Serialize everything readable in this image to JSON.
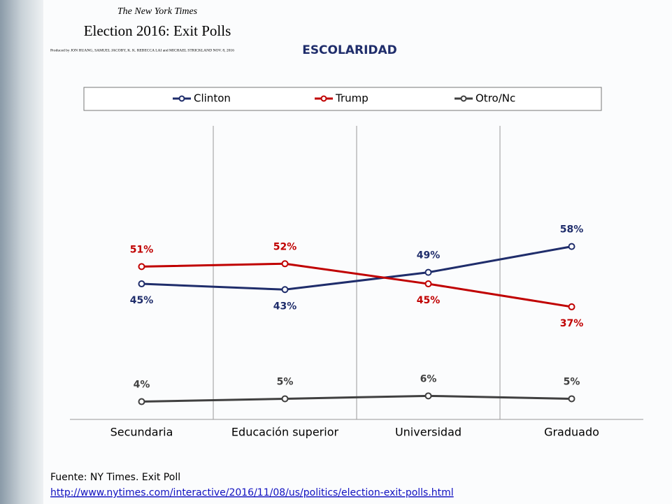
{
  "chart_data": {
    "type": "line",
    "header": {
      "publisher": "The New York Times",
      "headline": "Election 2016: Exit Polls",
      "credits": "Produced by JON HUANG, SAMUEL JACOBY, K. K. REBECCA LAI and MICHAEL STRICKLAND   NOV. 8, 2016"
    },
    "title": "ESCOLARIDAD",
    "categories": [
      "Secundaria",
      "Educación superior",
      "Universidad",
      "Graduado"
    ],
    "series": [
      {
        "name": "Clinton",
        "color": "#1f2d6b",
        "values": [
          45,
          43,
          49,
          58
        ],
        "value_labels": [
          "45%",
          "43%",
          "49%",
          "58%"
        ]
      },
      {
        "name": "Trump",
        "color": "#c00000",
        "values": [
          51,
          52,
          45,
          37
        ],
        "value_labels": [
          "51%",
          "52%",
          "45%",
          "37%"
        ]
      },
      {
        "name": "Otro/Nc",
        "color": "#404040",
        "values": [
          4,
          5,
          6,
          5
        ],
        "value_labels": [
          "4%",
          "5%",
          "6%",
          "5%"
        ]
      }
    ],
    "ylim": [
      0,
      100
    ],
    "source": "Fuente: NY Times. Exit Poll",
    "source_url": "http://www.nytimes.com/interactive/2016/11/08/us/politics/election-exit-polls.html"
  }
}
